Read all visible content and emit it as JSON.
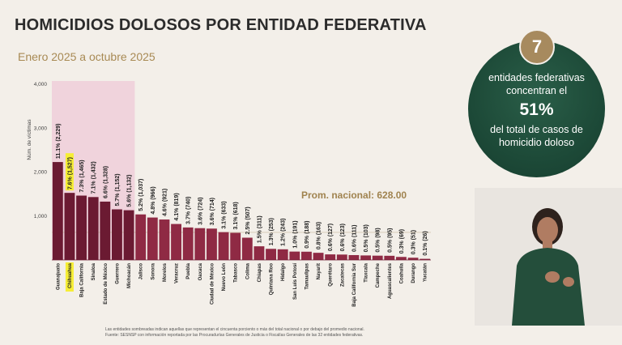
{
  "header": {
    "title": "HOMICIDIOS DOLOSOS POR ENTIDAD FEDERATIVA",
    "subtitle": "Enero 2025 a octubre 2025"
  },
  "callout": {
    "badge_number": "7",
    "line1": "entidades federativas concentran el",
    "percent": "51%",
    "line2": "del total de casos de homicidio doloso"
  },
  "footnotes": {
    "note1": "Las entidades sombreadas indican aquellas que representan el cincuenta porciento o más del total nacional o por debajo del promedio nacional.",
    "note2": "Fuente: SESNSP con información reportada por las Procuradurías Generales de Justicia o Fiscalías Generales de las 32 entidades federativas."
  },
  "colors": {
    "bar_dark": "#6b1a32",
    "bar_light": "#8f2a44",
    "shade": "#f0d3dc",
    "highlight": "#f6ee36",
    "avg_label": "#a0834f",
    "callout_bg": "#1d4a38",
    "badge_bg": "#a78a5e"
  },
  "chart_data": {
    "type": "bar",
    "ylabel": "Núm. de víctimas",
    "ylim": [
      0,
      4000
    ],
    "yticks": [
      "1,000",
      "2,000",
      "3,000",
      "4,000"
    ],
    "ytick_values": [
      1000,
      2000,
      3000,
      4000
    ],
    "average_value": 628,
    "average_label": "Prom. nacional: 628.00",
    "highlighted_category": "Chihuahua",
    "shaded_count": 7,
    "categories": [
      "Guanajuato",
      "Chihuahua",
      "Baja California",
      "Sinaloa",
      "Estado de México",
      "Guerrero",
      "Michoacán",
      "Jalisco",
      "Sonora",
      "Morelos",
      "Veracruz",
      "Puebla",
      "Oaxaca",
      "Ciudad de México",
      "Nuevo León",
      "Tabasco",
      "Colima",
      "Chiapas",
      "Quintana Roo",
      "Hidalgo",
      "San Luis Potosí",
      "Tamaulipas",
      "Nayarit",
      "Querétaro",
      "Zacatecas",
      "Baja California Sur",
      "Tlaxcala",
      "Campeche",
      "Aguascalientes",
      "Coahuila",
      "Durango",
      "Yucatán"
    ],
    "values": [
      2229,
      1527,
      1465,
      1432,
      1328,
      1152,
      1132,
      1037,
      966,
      921,
      819,
      740,
      724,
      714,
      633,
      618,
      507,
      311,
      253,
      243,
      191,
      188,
      163,
      127,
      123,
      111,
      103,
      98,
      95,
      69,
      51,
      26
    ],
    "labels": [
      "11.1% (2,229)",
      "7.6% (1,527)",
      "7.3% (1,465)",
      "7.1% (1,432)",
      "6.6% (1,328)",
      "5.7% (1,152)",
      "5.6% (1,132)",
      "5.2% (1,037)",
      "4.8% (966)",
      "4.6% (921)",
      "4.1% (819)",
      "3.7% (740)",
      "3.6% (724)",
      "3.6% (714)",
      "3.1% (633)",
      "3.1% (618)",
      "2.5% (507)",
      "1.5% (311)",
      "1.3% (253)",
      "1.2% (243)",
      "1.0% (191)",
      "0.9% (188)",
      "0.8% (163)",
      "0.6% (127)",
      "0.6% (123)",
      "0.6% (111)",
      "0.5% (103)",
      "0.5% (98)",
      "0.5% (95)",
      "0.3% (69)",
      "0.3% (51)",
      "0.1% (26)"
    ]
  }
}
